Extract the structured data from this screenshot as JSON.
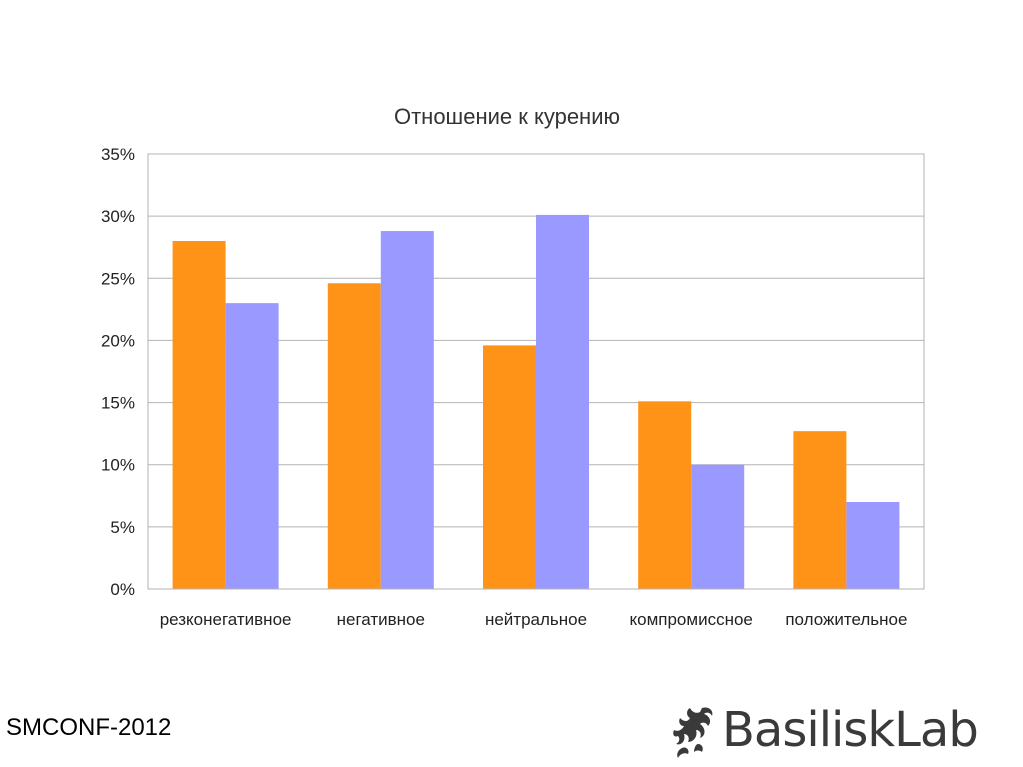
{
  "chart_data": {
    "type": "bar",
    "title": "Отношение к курению",
    "categories": [
      "резконегативное",
      "негативное",
      "нейтральное",
      "компромиссное",
      "положительное"
    ],
    "series": [
      {
        "color": "#ff9317",
        "values": [
          28.0,
          24.6,
          19.6,
          15.1,
          12.7
        ]
      },
      {
        "color": "#9999ff",
        "values": [
          23.0,
          28.8,
          30.1,
          10.0,
          7.0
        ]
      }
    ],
    "ylim": [
      0,
      35
    ],
    "yticks": [
      {
        "value": 0,
        "label": "0%"
      },
      {
        "value": 5,
        "label": "5%"
      },
      {
        "value": 10,
        "label": "10%"
      },
      {
        "value": 15,
        "label": "15%"
      },
      {
        "value": 20,
        "label": "20%"
      },
      {
        "value": 25,
        "label": "25%"
      },
      {
        "value": 30,
        "label": "30%"
      },
      {
        "value": 35,
        "label": "35%"
      }
    ],
    "grid": true,
    "legend": "none"
  },
  "footer": {
    "conference": "SMCONF-2012",
    "logo_text": "BasiliskLab",
    "logo_icon": "basilisk-icon"
  }
}
